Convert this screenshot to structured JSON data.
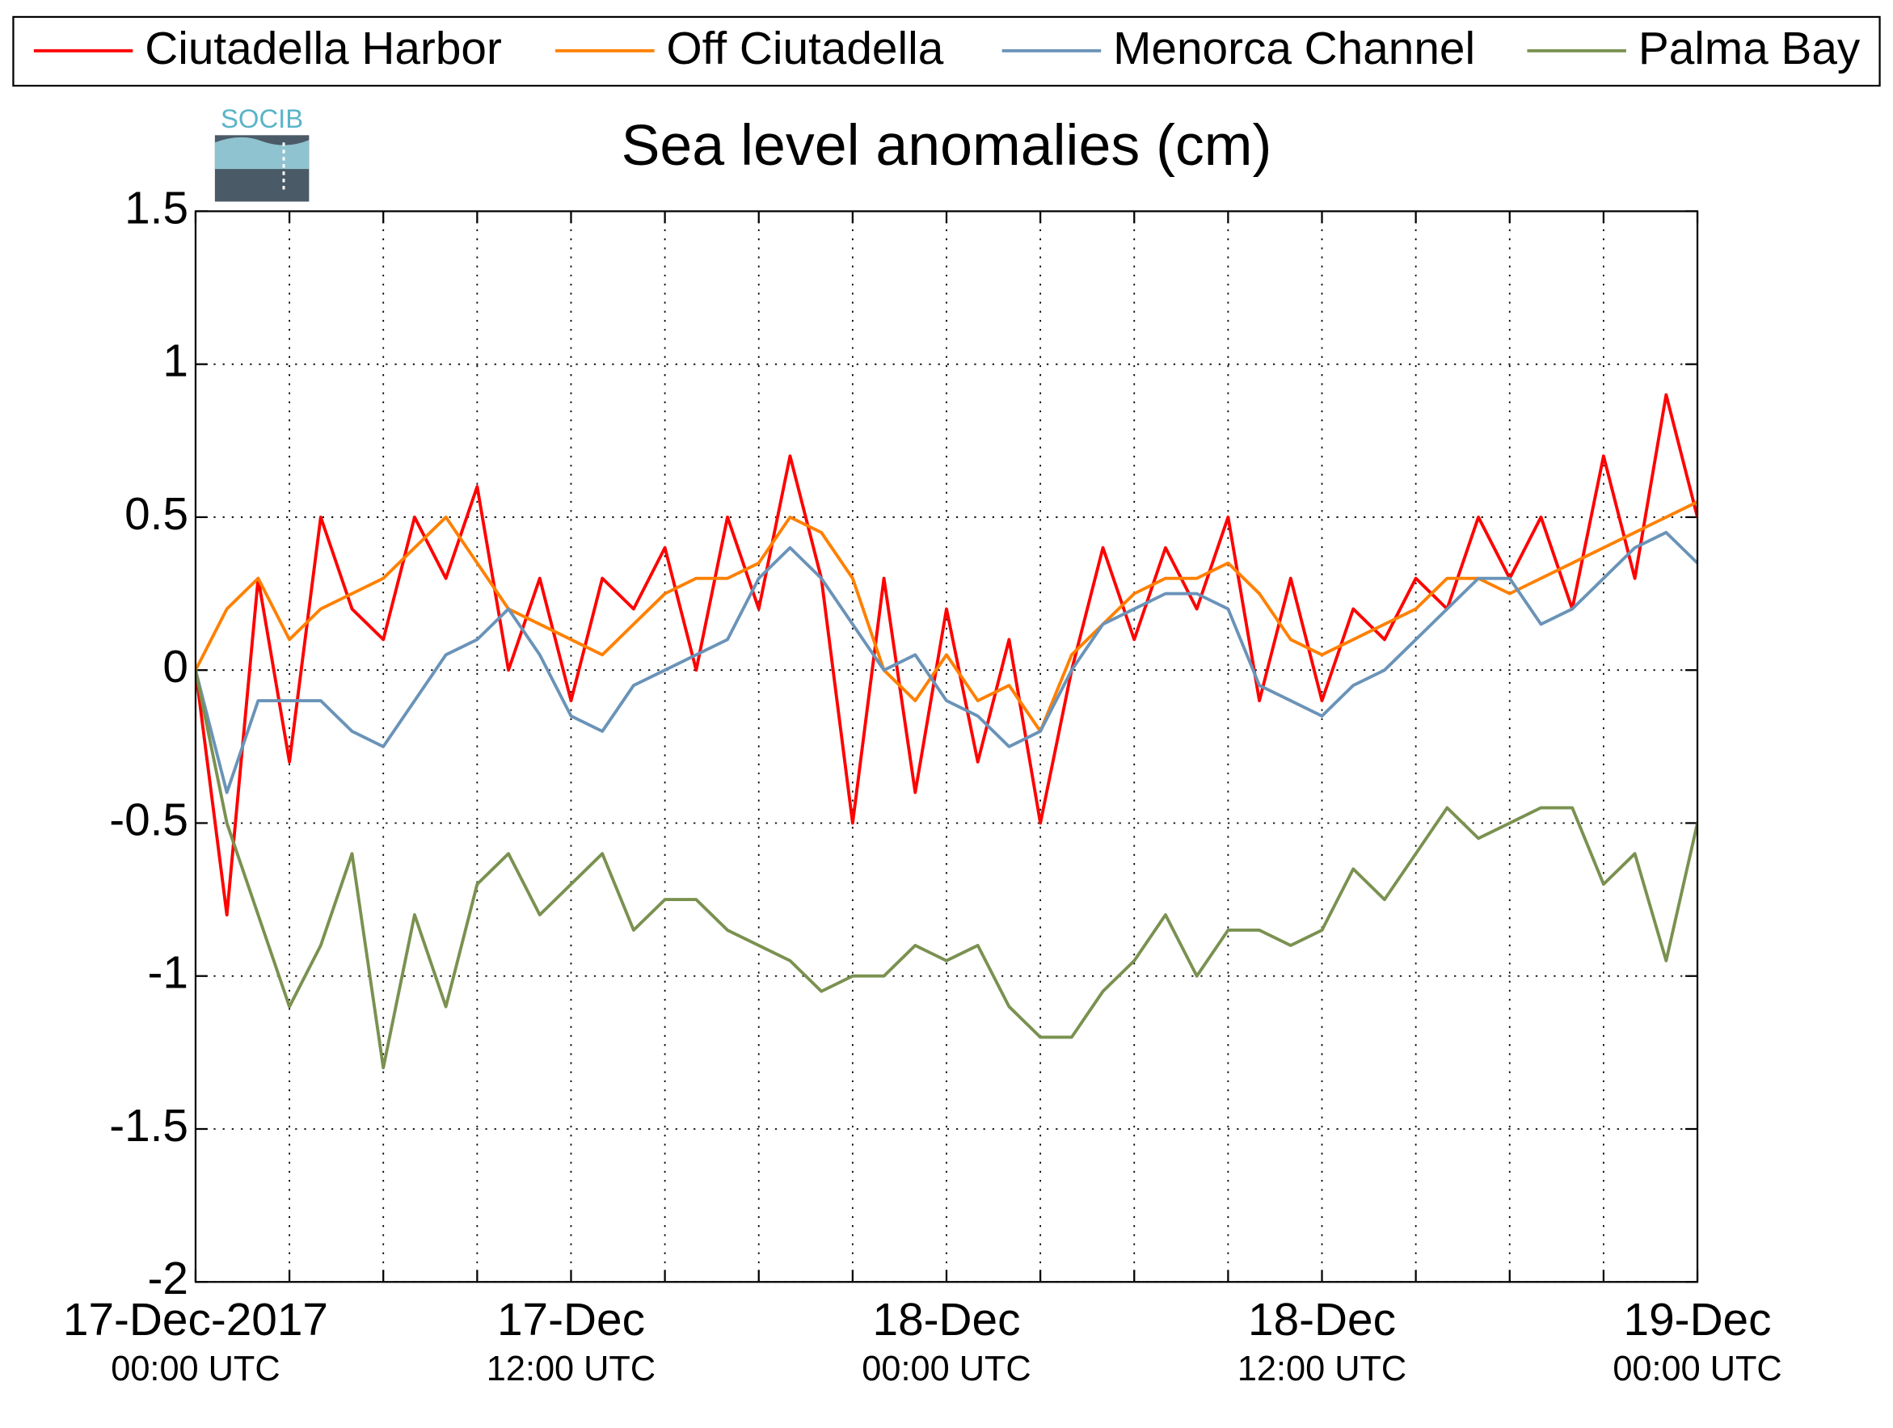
{
  "chart_data": {
    "type": "line",
    "title": "Sea level anomalies (cm)",
    "logo_text": "SOCIB",
    "x": [
      "2017-12-17 00:00",
      "2017-12-17 01:00",
      "2017-12-17 02:00",
      "2017-12-17 03:00",
      "2017-12-17 04:00",
      "2017-12-17 05:00",
      "2017-12-17 06:00",
      "2017-12-17 07:00",
      "2017-12-17 08:00",
      "2017-12-17 09:00",
      "2017-12-17 10:00",
      "2017-12-17 11:00",
      "2017-12-17 12:00",
      "2017-12-17 13:00",
      "2017-12-17 14:00",
      "2017-12-17 15:00",
      "2017-12-17 16:00",
      "2017-12-17 17:00",
      "2017-12-17 18:00",
      "2017-12-17 19:00",
      "2017-12-17 20:00",
      "2017-12-17 21:00",
      "2017-12-17 22:00",
      "2017-12-17 23:00",
      "2017-12-18 00:00",
      "2017-12-18 01:00",
      "2017-12-18 02:00",
      "2017-12-18 03:00",
      "2017-12-18 04:00",
      "2017-12-18 05:00",
      "2017-12-18 06:00",
      "2017-12-18 07:00",
      "2017-12-18 08:00",
      "2017-12-18 09:00",
      "2017-12-18 10:00",
      "2017-12-18 11:00",
      "2017-12-18 12:00",
      "2017-12-18 13:00",
      "2017-12-18 14:00",
      "2017-12-18 15:00",
      "2017-12-18 16:00",
      "2017-12-18 17:00",
      "2017-12-18 18:00",
      "2017-12-18 19:00",
      "2017-12-18 20:00",
      "2017-12-18 21:00",
      "2017-12-18 22:00",
      "2017-12-18 23:00",
      "2017-12-19 00:00"
    ],
    "series": [
      {
        "name": "Ciutadella Harbor",
        "color": "#ff0000",
        "values": [
          0.0,
          -0.8,
          0.3,
          -0.3,
          0.5,
          0.2,
          0.1,
          0.5,
          0.3,
          0.6,
          0.0,
          0.3,
          -0.1,
          0.3,
          0.2,
          0.4,
          0.0,
          0.5,
          0.2,
          0.7,
          0.3,
          -0.5,
          0.3,
          -0.4,
          0.2,
          -0.3,
          0.1,
          -0.5,
          0.0,
          0.4,
          0.1,
          0.4,
          0.2,
          0.5,
          -0.1,
          0.3,
          -0.1,
          0.2,
          0.1,
          0.3,
          0.2,
          0.5,
          0.3,
          0.5,
          0.2,
          0.7,
          0.3,
          0.9,
          0.5
        ]
      },
      {
        "name": "Off Ciutadella",
        "color": "#ff8000",
        "values": [
          0.0,
          0.2,
          0.3,
          0.1,
          0.2,
          0.25,
          0.3,
          0.4,
          0.5,
          0.35,
          0.2,
          0.15,
          0.1,
          0.05,
          0.15,
          0.25,
          0.3,
          0.3,
          0.35,
          0.5,
          0.45,
          0.3,
          0.0,
          -0.1,
          0.05,
          -0.1,
          -0.05,
          -0.2,
          0.05,
          0.15,
          0.25,
          0.3,
          0.3,
          0.35,
          0.25,
          0.1,
          0.05,
          0.1,
          0.15,
          0.2,
          0.3,
          0.3,
          0.25,
          0.3,
          0.35,
          0.4,
          0.45,
          0.5,
          0.55
        ]
      },
      {
        "name": "Menorca Channel",
        "color": "#6a93b8",
        "values": [
          0.0,
          -0.4,
          -0.1,
          -0.1,
          -0.1,
          -0.2,
          -0.25,
          -0.1,
          0.05,
          0.1,
          0.2,
          0.05,
          -0.15,
          -0.2,
          -0.05,
          0.0,
          0.05,
          0.1,
          0.3,
          0.4,
          0.3,
          0.15,
          0.0,
          0.05,
          -0.1,
          -0.15,
          -0.25,
          -0.2,
          0.0,
          0.15,
          0.2,
          0.25,
          0.25,
          0.2,
          -0.05,
          -0.1,
          -0.15,
          -0.05,
          0.0,
          0.1,
          0.2,
          0.3,
          0.3,
          0.15,
          0.2,
          0.3,
          0.4,
          0.45,
          0.35
        ]
      },
      {
        "name": "Palma Bay",
        "color": "#7a9150",
        "values": [
          0.0,
          -0.5,
          -0.8,
          -1.1,
          -0.9,
          -0.6,
          -1.3,
          -0.8,
          -1.1,
          -0.7,
          -0.6,
          -0.8,
          -0.7,
          -0.6,
          -0.85,
          -0.75,
          -0.75,
          -0.85,
          -0.9,
          -0.95,
          -1.05,
          -1.0,
          -1.0,
          -0.9,
          -0.95,
          -0.9,
          -1.1,
          -1.2,
          -1.2,
          -1.05,
          -0.95,
          -0.8,
          -1.0,
          -0.85,
          -0.85,
          -0.9,
          -0.85,
          -0.65,
          -0.75,
          -0.6,
          -0.45,
          -0.55,
          -0.5,
          -0.45,
          -0.45,
          -0.7,
          -0.6,
          -0.95,
          -0.5
        ]
      }
    ],
    "xlim": [
      "2017-12-17 00:00",
      "2017-12-19 00:00"
    ],
    "xticks": [
      "2017-12-17 00:00",
      "2017-12-17 03:00",
      "2017-12-17 06:00",
      "2017-12-17 09:00",
      "2017-12-17 12:00",
      "2017-12-17 15:00",
      "2017-12-17 18:00",
      "2017-12-17 21:00",
      "2017-12-18 00:00",
      "2017-12-18 03:00",
      "2017-12-18 06:00",
      "2017-12-18 09:00",
      "2017-12-18 12:00",
      "2017-12-18 15:00",
      "2017-12-18 18:00",
      "2017-12-18 21:00",
      "2017-12-19 00:00"
    ],
    "xtick_labels": [
      {
        "value": "2017-12-17 00:00",
        "label": [
          "17-Dec-2017",
          "00:00 UTC"
        ]
      },
      {
        "value": "2017-12-17 12:00",
        "label": [
          "17-Dec",
          "12:00 UTC"
        ]
      },
      {
        "value": "2017-12-18 00:00",
        "label": [
          "18-Dec",
          "00:00 UTC"
        ]
      },
      {
        "value": "2017-12-18 12:00",
        "label": [
          "18-Dec",
          "12:00 UTC"
        ]
      },
      {
        "value": "2017-12-19 00:00",
        "label": [
          "19-Dec",
          "00:00 UTC"
        ]
      }
    ],
    "ylim": [
      -2,
      1.5
    ],
    "yticks": [
      -2,
      -1.5,
      -1,
      -0.5,
      0,
      0.5,
      1,
      1.5
    ],
    "grid": true,
    "legend": "top"
  }
}
